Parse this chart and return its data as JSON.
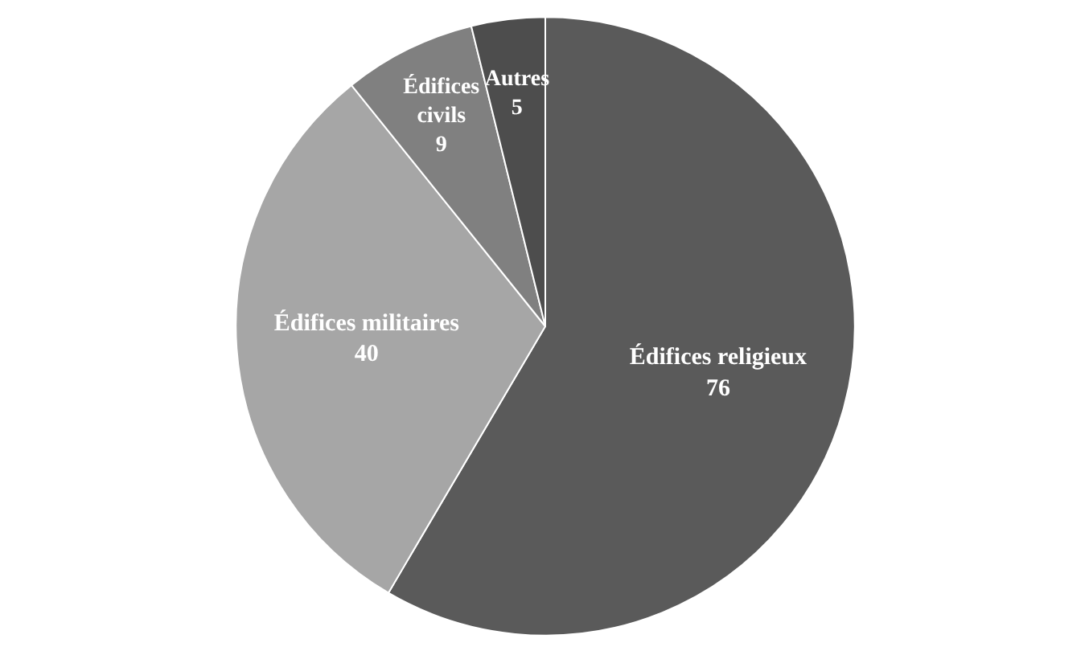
{
  "chart_data": {
    "type": "pie",
    "categories": [
      "Édifices religieux",
      "Édifices militaires",
      "Édifices civils",
      "Autres"
    ],
    "values": [
      76,
      40,
      9,
      5
    ],
    "colors": [
      "#5a5a5a",
      "#a6a6a6",
      "#808080",
      "#4d4d4d"
    ],
    "data_labels": true
  }
}
